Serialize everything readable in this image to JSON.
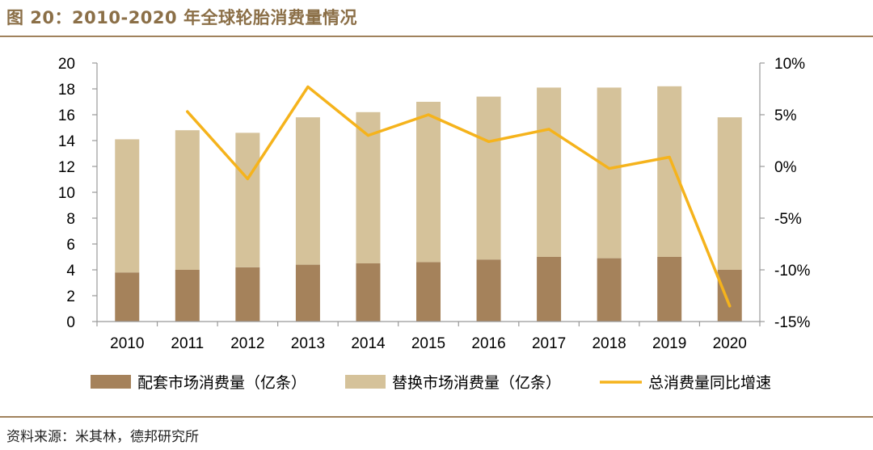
{
  "title": "图 20：2010-2020 年全球轮胎消费量情况",
  "source": "资料来源：米其林，德邦研究所",
  "colors": {
    "oe": "#A5825B",
    "replacement": "#D5C29A",
    "growth": "#F5B31C",
    "accent": "#8B6F47"
  },
  "chart_data": {
    "type": "bar",
    "stacked": true,
    "categories": [
      "2010",
      "2011",
      "2012",
      "2013",
      "2014",
      "2015",
      "2016",
      "2017",
      "2018",
      "2019",
      "2020"
    ],
    "series": [
      {
        "name": "配套市场消费量（亿条）",
        "kind": "bar",
        "axis": "left",
        "values": [
          3.8,
          4.0,
          4.2,
          4.4,
          4.5,
          4.6,
          4.8,
          5.0,
          4.9,
          5.0,
          4.0
        ]
      },
      {
        "name": "替换市场消费量（亿条）",
        "kind": "bar",
        "axis": "left",
        "values": [
          10.3,
          10.8,
          10.4,
          11.4,
          11.7,
          12.4,
          12.6,
          13.1,
          13.2,
          13.2,
          11.8
        ]
      },
      {
        "name": "总消费量同比增速",
        "kind": "line",
        "axis": "right",
        "values": [
          null,
          5.3,
          -1.2,
          7.7,
          3.0,
          5.0,
          2.4,
          3.6,
          -0.2,
          0.9,
          -13.5
        ]
      }
    ],
    "left_axis": {
      "min": 0,
      "max": 20,
      "step": 2,
      "ticks": [
        "0",
        "2",
        "4",
        "6",
        "8",
        "10",
        "12",
        "14",
        "16",
        "18",
        "20"
      ]
    },
    "right_axis": {
      "min": -15,
      "max": 10,
      "step": 5,
      "ticks": [
        "-15%",
        "-10%",
        "-5%",
        "0%",
        "5%",
        "10%"
      ]
    },
    "legend": [
      "配套市场消费量（亿条）",
      "替换市场消费量（亿条）",
      "总消费量同比增速"
    ],
    "legend_position": "bottom"
  }
}
